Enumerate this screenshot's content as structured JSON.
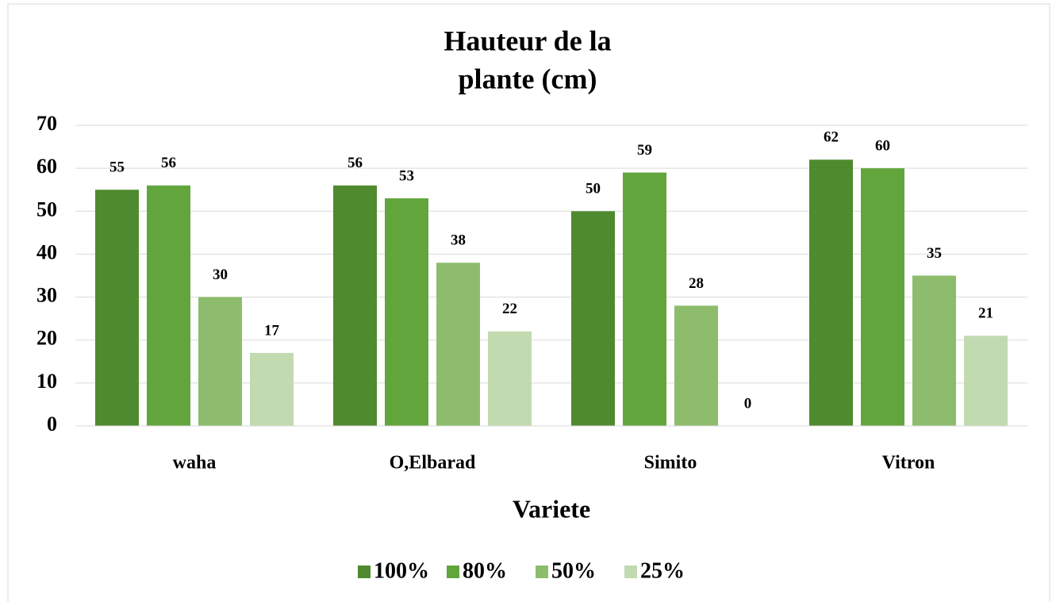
{
  "chart_data": {
    "type": "bar",
    "title": [
      "Hauteur de la",
      "plante (cm)"
    ],
    "x_label": "Variete",
    "categories": [
      "waha",
      "O,Elbarad",
      "Simito",
      "Vitron"
    ],
    "series": [
      {
        "name": "100%",
        "color": "#4f8a2f",
        "values": [
          55,
          56,
          50,
          62
        ]
      },
      {
        "name": "80%",
        "color": "#62a53d",
        "values": [
          56,
          53,
          59,
          60
        ]
      },
      {
        "name": "50%",
        "color": "#8dbd6c",
        "values": [
          30,
          38,
          28,
          35
        ]
      },
      {
        "name": "25%",
        "color": "#c2dab0",
        "values": [
          17,
          22,
          0,
          21
        ]
      }
    ],
    "ylim": [
      0,
      70
    ],
    "yticks": [
      0,
      10,
      20,
      30,
      40,
      50,
      60,
      70
    ],
    "grid": true,
    "legend": "bottom"
  }
}
